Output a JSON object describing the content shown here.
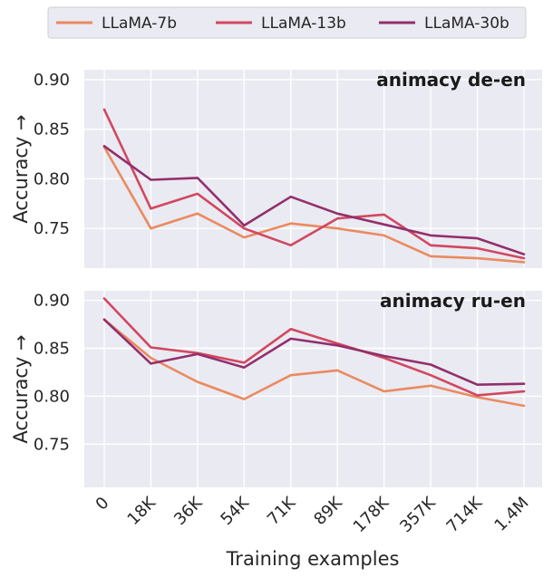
{
  "chart_data": {
    "type": "line",
    "categories": [
      "0",
      "18K",
      "36K",
      "54K",
      "71K",
      "89K",
      "178K",
      "357K",
      "714K",
      "1.4M"
    ],
    "xlabel": "Training examples",
    "legend": {
      "placement": "top",
      "entries": [
        {
          "name": "LLaMA-7b",
          "color": "#ea8a60"
        },
        {
          "name": "LLaMA-13b",
          "color": "#d14860"
        },
        {
          "name": "LLaMA-30b",
          "color": "#922f6b"
        }
      ]
    },
    "panels": [
      {
        "title": "animacy de-en",
        "ylabel": "Accuracy →",
        "ylim": [
          0.71,
          0.91
        ],
        "yticks": [
          "0.75",
          "0.80",
          "0.85",
          "0.90"
        ],
        "grid": true,
        "series": [
          {
            "name": "LLaMA-7b",
            "values": [
              0.832,
              0.75,
              0.765,
              0.741,
              0.755,
              0.75,
              0.743,
              0.722,
              0.72,
              0.716
            ]
          },
          {
            "name": "LLaMA-13b",
            "values": [
              0.87,
              0.77,
              0.785,
              0.75,
              0.733,
              0.76,
              0.764,
              0.733,
              0.73,
              0.72
            ]
          },
          {
            "name": "LLaMA-30b",
            "values": [
              0.833,
              0.799,
              0.801,
              0.753,
              0.782,
              0.765,
              0.754,
              0.743,
              0.74,
              0.724
            ]
          }
        ]
      },
      {
        "title": "animacy ru-en",
        "ylabel": "Accuracy →",
        "ylim": [
          0.705,
          0.91
        ],
        "yticks": [
          "0.75",
          "0.80",
          "0.85",
          "0.90"
        ],
        "grid": true,
        "series": [
          {
            "name": "LLaMA-7b",
            "values": [
              0.88,
              0.84,
              0.815,
              0.797,
              0.822,
              0.827,
              0.805,
              0.811,
              0.799,
              0.79
            ]
          },
          {
            "name": "LLaMA-13b",
            "values": [
              0.902,
              0.851,
              0.845,
              0.835,
              0.87,
              0.855,
              0.84,
              0.822,
              0.801,
              0.805
            ]
          },
          {
            "name": "LLaMA-30b",
            "values": [
              0.88,
              0.834,
              0.844,
              0.83,
              0.86,
              0.853,
              0.842,
              0.833,
              0.812,
              0.813
            ]
          }
        ]
      }
    ]
  }
}
